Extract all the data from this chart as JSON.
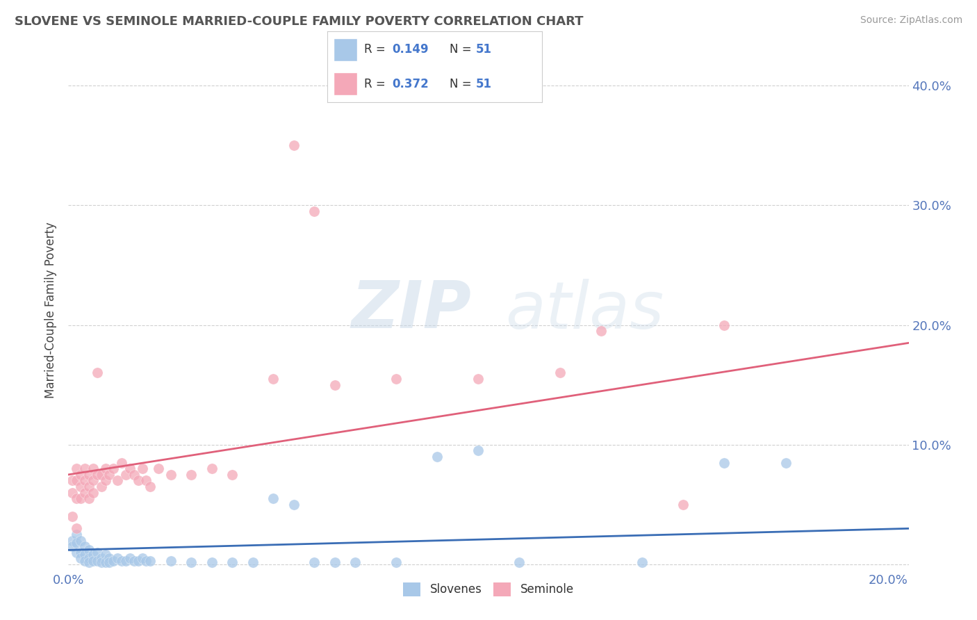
{
  "title": "SLOVENE VS SEMINOLE MARRIED-COUPLE FAMILY POVERTY CORRELATION CHART",
  "source": "Source: ZipAtlas.com",
  "ylabel_label": "Married-Couple Family Poverty",
  "xlim": [
    0.0,
    0.205
  ],
  "ylim": [
    -0.005,
    0.43
  ],
  "xtick_positions": [
    0.0,
    0.04,
    0.08,
    0.12,
    0.16,
    0.2
  ],
  "xtick_labels": [
    "0.0%",
    "",
    "",
    "",
    "",
    "20.0%"
  ],
  "ytick_positions": [
    0.0,
    0.1,
    0.2,
    0.3,
    0.4
  ],
  "ytick_labels_right": [
    "",
    "10.0%",
    "20.0%",
    "30.0%",
    "40.0%"
  ],
  "background_color": "#ffffff",
  "grid_color": "#d0d0d0",
  "slovene_color": "#a8c8e8",
  "seminole_color": "#f4a8b8",
  "slovene_line_color": "#3a6db5",
  "seminole_line_color": "#e0607a",
  "r_slovene": 0.149,
  "r_seminole": 0.372,
  "n_slovene": 51,
  "n_seminole": 51,
  "watermark_zip": "ZIP",
  "watermark_atlas": "atlas",
  "slovene_points": [
    [
      0.001,
      0.02
    ],
    [
      0.001,
      0.015
    ],
    [
      0.002,
      0.025
    ],
    [
      0.002,
      0.018
    ],
    [
      0.002,
      0.01
    ],
    [
      0.003,
      0.02
    ],
    [
      0.003,
      0.01
    ],
    [
      0.003,
      0.005
    ],
    [
      0.004,
      0.015
    ],
    [
      0.004,
      0.008
    ],
    [
      0.004,
      0.003
    ],
    [
      0.005,
      0.012
    ],
    [
      0.005,
      0.005
    ],
    [
      0.005,
      0.002
    ],
    [
      0.006,
      0.008
    ],
    [
      0.006,
      0.003
    ],
    [
      0.007,
      0.01
    ],
    [
      0.007,
      0.003
    ],
    [
      0.008,
      0.005
    ],
    [
      0.008,
      0.002
    ],
    [
      0.009,
      0.008
    ],
    [
      0.009,
      0.002
    ],
    [
      0.01,
      0.005
    ],
    [
      0.01,
      0.002
    ],
    [
      0.011,
      0.003
    ],
    [
      0.012,
      0.005
    ],
    [
      0.013,
      0.003
    ],
    [
      0.014,
      0.003
    ],
    [
      0.015,
      0.005
    ],
    [
      0.016,
      0.003
    ],
    [
      0.017,
      0.003
    ],
    [
      0.018,
      0.005
    ],
    [
      0.019,
      0.003
    ],
    [
      0.02,
      0.003
    ],
    [
      0.025,
      0.003
    ],
    [
      0.03,
      0.002
    ],
    [
      0.035,
      0.002
    ],
    [
      0.04,
      0.002
    ],
    [
      0.045,
      0.002
    ],
    [
      0.05,
      0.055
    ],
    [
      0.055,
      0.05
    ],
    [
      0.06,
      0.002
    ],
    [
      0.065,
      0.002
    ],
    [
      0.07,
      0.002
    ],
    [
      0.08,
      0.002
    ],
    [
      0.09,
      0.09
    ],
    [
      0.1,
      0.095
    ],
    [
      0.11,
      0.002
    ],
    [
      0.14,
      0.002
    ],
    [
      0.16,
      0.085
    ],
    [
      0.175,
      0.085
    ]
  ],
  "seminole_points": [
    [
      0.001,
      0.07
    ],
    [
      0.001,
      0.06
    ],
    [
      0.001,
      0.04
    ],
    [
      0.002,
      0.08
    ],
    [
      0.002,
      0.07
    ],
    [
      0.002,
      0.055
    ],
    [
      0.002,
      0.03
    ],
    [
      0.003,
      0.075
    ],
    [
      0.003,
      0.065
    ],
    [
      0.003,
      0.055
    ],
    [
      0.004,
      0.08
    ],
    [
      0.004,
      0.07
    ],
    [
      0.004,
      0.06
    ],
    [
      0.005,
      0.075
    ],
    [
      0.005,
      0.065
    ],
    [
      0.005,
      0.055
    ],
    [
      0.006,
      0.08
    ],
    [
      0.006,
      0.07
    ],
    [
      0.006,
      0.06
    ],
    [
      0.007,
      0.16
    ],
    [
      0.007,
      0.075
    ],
    [
      0.008,
      0.075
    ],
    [
      0.008,
      0.065
    ],
    [
      0.009,
      0.08
    ],
    [
      0.009,
      0.07
    ],
    [
      0.01,
      0.075
    ],
    [
      0.011,
      0.08
    ],
    [
      0.012,
      0.07
    ],
    [
      0.013,
      0.085
    ],
    [
      0.014,
      0.075
    ],
    [
      0.015,
      0.08
    ],
    [
      0.016,
      0.075
    ],
    [
      0.017,
      0.07
    ],
    [
      0.018,
      0.08
    ],
    [
      0.019,
      0.07
    ],
    [
      0.02,
      0.065
    ],
    [
      0.022,
      0.08
    ],
    [
      0.025,
      0.075
    ],
    [
      0.03,
      0.075
    ],
    [
      0.035,
      0.08
    ],
    [
      0.04,
      0.075
    ],
    [
      0.05,
      0.155
    ],
    [
      0.055,
      0.35
    ],
    [
      0.06,
      0.295
    ],
    [
      0.065,
      0.15
    ],
    [
      0.08,
      0.155
    ],
    [
      0.1,
      0.155
    ],
    [
      0.12,
      0.16
    ],
    [
      0.13,
      0.195
    ],
    [
      0.15,
      0.05
    ],
    [
      0.16,
      0.2
    ]
  ]
}
